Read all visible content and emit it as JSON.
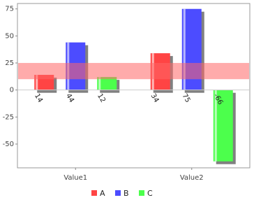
{
  "chart_data": {
    "type": "bar",
    "categories": [
      "Value1",
      "Value2"
    ],
    "series": [
      {
        "name": "A",
        "color": "#ff4444",
        "values": [
          14,
          34
        ]
      },
      {
        "name": "B",
        "color": "#4c4cff",
        "values": [
          44,
          75
        ]
      },
      {
        "name": "C",
        "color": "#4cff4c",
        "values": [
          12,
          -66
        ]
      }
    ],
    "ylim": [
      -72,
      80
    ],
    "yticks": [
      -50,
      -25,
      0,
      25,
      50,
      75
    ],
    "marker": {
      "from": 10,
      "to": 25,
      "color": "#ff6666"
    },
    "legend": "bottom"
  }
}
